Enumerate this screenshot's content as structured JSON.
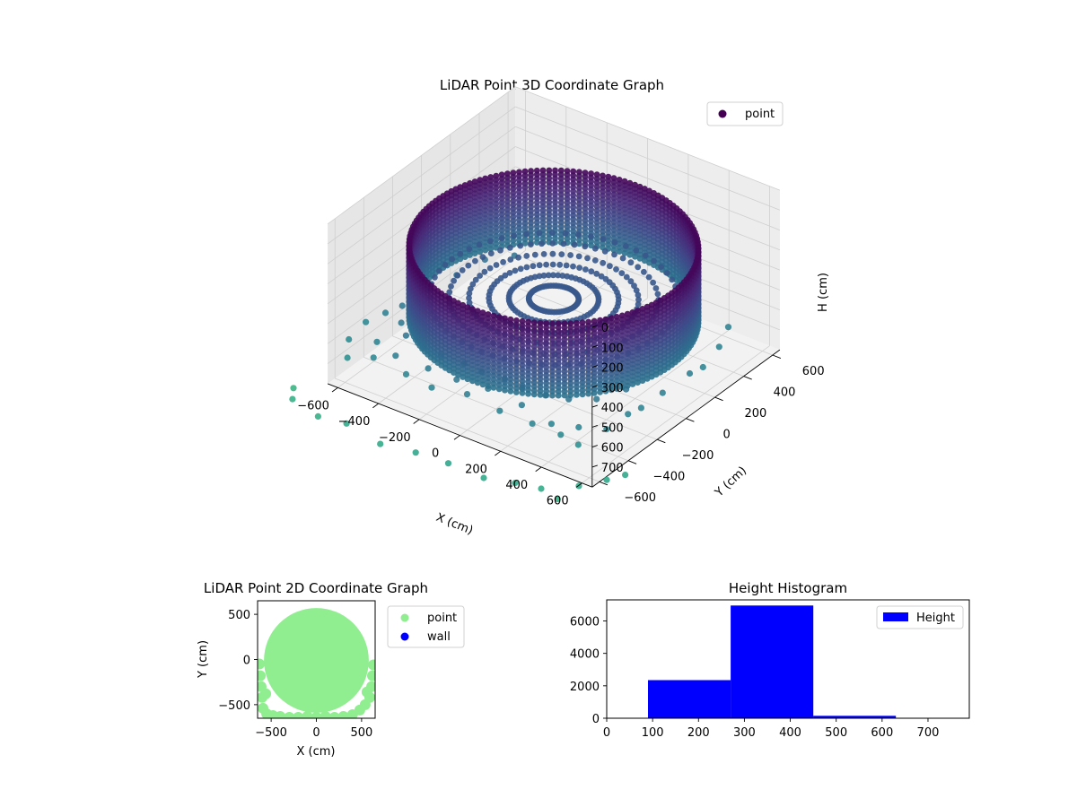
{
  "colors": {
    "pane_left": "#e6e6e6",
    "pane_right": "#ededed",
    "pane_floor": "#f2f2f2",
    "grid": "#cfcfcf",
    "point_2d": "#90ee90",
    "wall_2d": "#0000ff",
    "histogram": "#0000ff",
    "viridis_dark": "#440154",
    "viridis_mid": "#3b528b",
    "viridis_teal": "#21918c",
    "viridis_light": "#5ec962"
  },
  "chart_data": [
    {
      "type": "scatter",
      "projection": "3d",
      "title": "LiDAR Point 3D Coordinate Graph",
      "xlabel": "X (cm)",
      "ylabel": "Y (cm)",
      "zlabel": "H (cm)",
      "xlim": [
        -650,
        650
      ],
      "ylim": [
        -650,
        650
      ],
      "zlim": [
        800,
        0
      ],
      "z_inverted": true,
      "x_ticks": [
        "−600",
        "−400",
        "−200",
        "0",
        "200",
        "400",
        "600"
      ],
      "y_ticks": [
        "−600",
        "−400",
        "−200",
        "0",
        "200",
        "400",
        "600"
      ],
      "z_ticks": [
        "0",
        "100",
        "200",
        "300",
        "400",
        "500",
        "600",
        "700"
      ],
      "colormap": "viridis",
      "legend": [
        {
          "label": "point"
        }
      ],
      "legend_position": "top-right",
      "grid": true,
      "wall": {
        "shape": "cylinder",
        "radius": 580,
        "center": [
          0,
          0
        ],
        "h_top": 200,
        "h_bottom": 560
      },
      "scatter_points": [
        [
          -610,
          -560,
          610
        ],
        [
          -600,
          -320,
          600
        ],
        [
          -640,
          -400,
          620
        ],
        [
          -560,
          -640,
          640
        ],
        [
          -500,
          -520,
          600
        ],
        [
          -460,
          -600,
          620
        ],
        [
          -380,
          -560,
          600
        ],
        [
          -300,
          -600,
          640
        ],
        [
          -220,
          -560,
          600
        ],
        [
          -160,
          -620,
          640
        ],
        [
          -80,
          -560,
          600
        ],
        [
          0,
          -600,
          620
        ],
        [
          60,
          -540,
          600
        ],
        [
          160,
          -600,
          640
        ],
        [
          240,
          -560,
          600
        ],
        [
          320,
          -600,
          640
        ],
        [
          400,
          -580,
          620
        ],
        [
          460,
          -600,
          640
        ],
        [
          520,
          -560,
          600
        ],
        [
          560,
          -620,
          640
        ],
        [
          600,
          -480,
          620
        ],
        [
          620,
          -360,
          600
        ],
        [
          600,
          -240,
          640
        ],
        [
          620,
          -120,
          620
        ],
        [
          640,
          40,
          600
        ],
        [
          620,
          160,
          640
        ],
        [
          600,
          300,
          620
        ],
        [
          560,
          420,
          600
        ],
        [
          -540,
          -120,
          560
        ],
        [
          -520,
          60,
          580
        ],
        [
          -480,
          200,
          560
        ],
        [
          -420,
          320,
          580
        ],
        [
          -560,
          -260,
          580
        ],
        [
          -480,
          -380,
          570
        ],
        [
          -400,
          -460,
          560
        ],
        [
          -300,
          -480,
          570
        ],
        [
          -200,
          -500,
          560
        ],
        [
          -100,
          -480,
          570
        ],
        [
          0,
          -500,
          560
        ],
        [
          100,
          -480,
          570
        ],
        [
          200,
          -500,
          560
        ],
        [
          300,
          -480,
          570
        ],
        [
          400,
          -460,
          560
        ],
        [
          480,
          -380,
          570
        ],
        [
          540,
          -260,
          560
        ]
      ],
      "outliers": [
        [
          -660,
          -880,
          760
        ],
        [
          -520,
          -900,
          780
        ],
        [
          -380,
          -900,
          760
        ],
        [
          -200,
          -920,
          780
        ],
        [
          -40,
          -900,
          770
        ],
        [
          120,
          -900,
          760
        ],
        [
          280,
          -880,
          780
        ],
        [
          420,
          -860,
          760
        ],
        [
          520,
          -820,
          770
        ],
        [
          620,
          -700,
          780
        ],
        [
          700,
          -620,
          760
        ],
        [
          720,
          -520,
          780
        ],
        [
          -740,
          -760,
          800
        ],
        [
          600,
          -820,
          790
        ]
      ]
    },
    {
      "type": "scatter",
      "title": "LiDAR Point 2D Coordinate Graph",
      "xlabel": "X (cm)",
      "ylabel": "Y (cm)",
      "xlim": [
        -650,
        650
      ],
      "ylim": [
        -650,
        650
      ],
      "x_ticks": [
        "−500",
        "0",
        "500"
      ],
      "y_ticks": [
        "500",
        "0",
        "−500"
      ],
      "legend": [
        {
          "label": "point"
        },
        {
          "label": "wall"
        }
      ],
      "legend_position": "outside-right",
      "disk": {
        "radius": 580,
        "center": [
          0,
          0
        ]
      },
      "edge_points": [
        [
          -630,
          -50
        ],
        [
          -620,
          -180
        ],
        [
          -610,
          -300
        ],
        [
          -600,
          -420
        ],
        [
          -590,
          -540
        ],
        [
          -550,
          -600
        ],
        [
          -480,
          -620
        ],
        [
          -400,
          -630
        ],
        [
          -300,
          -640
        ],
        [
          -200,
          -640
        ],
        [
          -100,
          -630
        ],
        [
          0,
          -640
        ],
        [
          100,
          -630
        ],
        [
          200,
          -640
        ],
        [
          300,
          -630
        ],
        [
          400,
          -610
        ],
        [
          480,
          -560
        ],
        [
          540,
          -500
        ],
        [
          590,
          -420
        ],
        [
          610,
          -300
        ],
        [
          620,
          -180
        ],
        [
          630,
          -60
        ],
        [
          -560,
          -380
        ],
        [
          560,
          -360
        ]
      ]
    },
    {
      "type": "bar",
      "subtype": "histogram",
      "title": "Height Histogram",
      "xlabel": "",
      "ylabel": "",
      "xlim": [
        0,
        790
      ],
      "ylim": [
        0,
        7300
      ],
      "x_ticks": [
        "0",
        "100",
        "200",
        "300",
        "400",
        "500",
        "600",
        "700"
      ],
      "y_ticks": [
        "0",
        "2000",
        "4000",
        "6000"
      ],
      "bins": [
        {
          "start": 90,
          "end": 270,
          "count": 2350
        },
        {
          "start": 270,
          "end": 450,
          "count": 6950
        },
        {
          "start": 450,
          "end": 630,
          "count": 150
        }
      ],
      "legend": [
        {
          "label": "Height"
        }
      ],
      "legend_position": "top-right"
    }
  ]
}
